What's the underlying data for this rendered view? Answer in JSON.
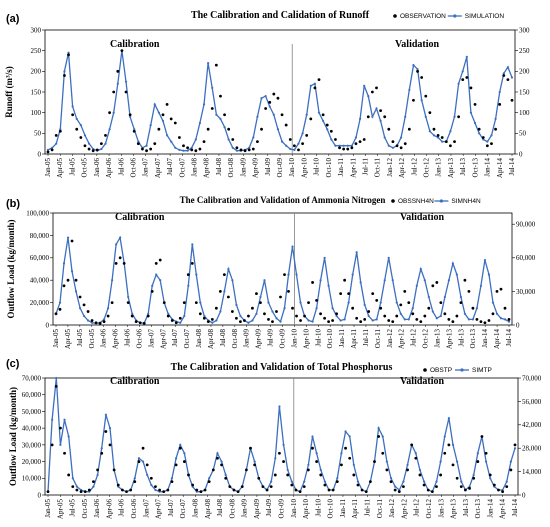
{
  "x_labels": [
    "Jan-05",
    "Apr-05",
    "Jul-05",
    "Oct-05",
    "Jan-06",
    "Apr-06",
    "Jul-06",
    "Oct-06",
    "Jan-07",
    "Apr-07",
    "Jul-07",
    "Oct-07",
    "Jan-08",
    "Apr-08",
    "Jul-08",
    "Oct-08",
    "Jan-09",
    "Apr-09",
    "Jul-09",
    "Oct-09",
    "Jan-10",
    "Apr-10",
    "Jul-10",
    "Oct-10",
    "Jan-11",
    "Apr-11",
    "Jul-11",
    "Oct-11",
    "Jan-12",
    "Apr-12",
    "Jul-12",
    "Oct-12",
    "Jan-13",
    "Apr-13",
    "Jul-13",
    "Oct-13",
    "Jan-14",
    "Apr-14",
    "Jul-14"
  ],
  "colors": {
    "simulation": "#3d6fc0",
    "observation": "#000000",
    "divider": "#7f7f7f"
  },
  "chart_data": [
    {
      "type": "line",
      "panel_label": "(a)",
      "title": "The Calibration and Calidation of  Runoff",
      "ylabel": "Runoff  (m³/s)",
      "ylim": [
        0,
        300
      ],
      "yticks": [
        0,
        50,
        100,
        150,
        200,
        250,
        300
      ],
      "y2ticks": [
        0,
        50,
        100,
        150,
        200,
        250,
        300
      ],
      "calibration_label": "Calibration",
      "validation_label": "Validation",
      "series": [
        {
          "name": "OBSERVATION",
          "kind": "points",
          "values": [
            5,
            10,
            45,
            55,
            190,
            240,
            95,
            60,
            40,
            20,
            12,
            8,
            10,
            25,
            45,
            100,
            150,
            200,
            250,
            150,
            95,
            55,
            25,
            12,
            8,
            12,
            25,
            60,
            95,
            120,
            85,
            75,
            40,
            20,
            15,
            10,
            8,
            12,
            30,
            60,
            110,
            215,
            140,
            95,
            60,
            35,
            15,
            10,
            8,
            10,
            12,
            30,
            60,
            110,
            125,
            145,
            135,
            95,
            70,
            35,
            20,
            10,
            25,
            45,
            85,
            160,
            180,
            95,
            70,
            55,
            35,
            15,
            12,
            12,
            15,
            25,
            30,
            35,
            90,
            150,
            160,
            105,
            90,
            60,
            30,
            20,
            15,
            25,
            60,
            130,
            200,
            185,
            140,
            100,
            60,
            45,
            40,
            30,
            20,
            30,
            90,
            180,
            185,
            160,
            120,
            60,
            40,
            20,
            25,
            60,
            120,
            190,
            180,
            130
          ]
        },
        {
          "name": "SIMULATION",
          "kind": "line",
          "values": [
            10,
            15,
            25,
            60,
            200,
            245,
            115,
            85,
            70,
            45,
            25,
            12,
            8,
            12,
            25,
            60,
            100,
            170,
            250,
            175,
            90,
            60,
            30,
            15,
            20,
            70,
            120,
            100,
            80,
            45,
            30,
            15,
            10,
            8,
            8,
            15,
            35,
            75,
            120,
            220,
            160,
            95,
            85,
            65,
            35,
            15,
            8,
            8,
            10,
            15,
            40,
            90,
            135,
            140,
            115,
            95,
            60,
            30,
            20,
            12,
            10,
            25,
            50,
            95,
            165,
            170,
            100,
            80,
            60,
            35,
            20,
            20,
            20,
            20,
            20,
            40,
            85,
            165,
            140,
            90,
            110,
            80,
            40,
            20,
            15,
            20,
            40,
            90,
            155,
            215,
            205,
            130,
            90,
            55,
            45,
            40,
            30,
            30,
            55,
            90,
            170,
            200,
            235,
            100,
            75,
            50,
            35,
            30,
            45,
            85,
            150,
            195,
            210,
            185
          ]
        }
      ]
    },
    {
      "type": "line",
      "panel_label": "(b)",
      "title": "The Calibration and Validation of Ammonia Nitrogen",
      "ylabel": "Outflow Load (kg/month)",
      "ylim": [
        0,
        100000
      ],
      "yticks": [
        "0",
        "20,000",
        "40,000",
        "60,000",
        "80,000",
        "100,000"
      ],
      "y2ticks": [
        "0",
        "30,000",
        "60,000",
        "90,000"
      ],
      "calibration_label": "Calibration",
      "validation_label": "Validation",
      "series": [
        {
          "name": "OBSSNH4N",
          "kind": "points",
          "values": [
            10000,
            14000,
            35000,
            40000,
            75000,
            40000,
            25000,
            18000,
            12000,
            4000,
            2000,
            1500,
            3000,
            8000,
            20000,
            55000,
            60000,
            55000,
            20000,
            8000,
            3000,
            2000,
            1500,
            8000,
            30000,
            55000,
            58000,
            20000,
            8000,
            4000,
            2000,
            6000,
            20000,
            45000,
            55000,
            20000,
            10000,
            6000,
            3000,
            5000,
            15000,
            30000,
            45000,
            25000,
            12000,
            6000,
            3000,
            4000,
            8000,
            15000,
            28000,
            20000,
            10000,
            5000,
            3000,
            12000,
            25000,
            45000,
            30000,
            15000,
            8000,
            4000,
            8000,
            20000,
            38000,
            22000,
            10000,
            6000,
            3000,
            4000,
            10000,
            28000,
            40000,
            28000,
            15000,
            6000,
            3000,
            5000,
            12000,
            28000,
            22000,
            15000,
            8000,
            4000,
            3000,
            8000,
            18000,
            30000,
            20000,
            10000,
            5000,
            3000,
            8000,
            15000,
            35000,
            38000,
            20000,
            10000,
            5000,
            3000,
            8000,
            20000,
            40000,
            30000,
            15000,
            5000,
            3000,
            2000,
            4000,
            10000,
            30000,
            32000,
            15000,
            5000
          ]
        },
        {
          "name": "SIMNH4N",
          "kind": "line",
          "values": [
            10000,
            20000,
            55000,
            78000,
            48000,
            30000,
            15000,
            8000,
            4000,
            2000,
            1500,
            2000,
            5000,
            15000,
            40000,
            72000,
            78000,
            55000,
            25000,
            10000,
            4000,
            2000,
            1500,
            10000,
            35000,
            45000,
            40000,
            20000,
            10000,
            5000,
            3000,
            2000,
            8000,
            35000,
            72000,
            45000,
            20000,
            8000,
            4000,
            2000,
            4000,
            12000,
            30000,
            50000,
            40000,
            18000,
            8000,
            4000,
            2000,
            4000,
            10000,
            25000,
            40000,
            20000,
            12000,
            6000,
            3000,
            15000,
            45000,
            70000,
            45000,
            20000,
            8000,
            4000,
            3000,
            15000,
            40000,
            60000,
            35000,
            15000,
            8000,
            4000,
            5000,
            20000,
            45000,
            65000,
            38000,
            18000,
            8000,
            4000,
            5000,
            20000,
            40000,
            60000,
            40000,
            20000,
            10000,
            5000,
            5000,
            15000,
            35000,
            50000,
            40000,
            25000,
            12000,
            6000,
            8000,
            25000,
            40000,
            55000,
            45000,
            25000,
            10000,
            5000,
            5000,
            15000,
            35000,
            58000,
            45000,
            20000,
            10000,
            6000,
            5000,
            3000
          ]
        }
      ]
    },
    {
      "type": "line",
      "panel_label": "(c)",
      "title": "The Calibration and Validation of  Total Phosphorus",
      "ylabel": "Outflow Load (kg/month)",
      "ylim": [
        0,
        70000
      ],
      "yticks": [
        "0",
        "10,000",
        "20,000",
        "30,000",
        "40,000",
        "50,000",
        "60,000",
        "70,000"
      ],
      "y2ticks": [
        "0",
        "14,000",
        "28,000",
        "42,000",
        "56,000",
        "70,000"
      ],
      "calibration_label": "Calibration",
      "validation_label": "Validation",
      "series": [
        {
          "name": "OBSTP",
          "kind": "points",
          "values": [
            2000,
            30000,
            65000,
            40000,
            25000,
            12000,
            5000,
            3000,
            2000,
            2000,
            3000,
            8000,
            15000,
            25000,
            38000,
            30000,
            15000,
            6000,
            3000,
            2000,
            3000,
            8000,
            20000,
            28000,
            18000,
            10000,
            5000,
            3000,
            2000,
            3000,
            8000,
            18000,
            28000,
            20000,
            12000,
            6000,
            3000,
            2000,
            3000,
            8000,
            15000,
            22000,
            18000,
            10000,
            5000,
            3000,
            2000,
            5000,
            15000,
            28000,
            18000,
            10000,
            5000,
            3000,
            5000,
            12000,
            25000,
            20000,
            12000,
            6000,
            3000,
            2000,
            5000,
            15000,
            28000,
            20000,
            12000,
            6000,
            3000,
            3000,
            8000,
            18000,
            28000,
            22000,
            12000,
            6000,
            3000,
            2000,
            8000,
            20000,
            35000,
            25000,
            15000,
            8000,
            3000,
            2000,
            5000,
            15000,
            30000,
            22000,
            12000,
            6000,
            3000,
            2000,
            5000,
            12000,
            25000,
            30000,
            18000,
            10000,
            5000,
            3000,
            4000,
            10000,
            20000,
            35000,
            25000,
            12000,
            6000,
            3000,
            2000,
            5000,
            15000,
            30000
          ]
        },
        {
          "name": "SIMTP",
          "kind": "line",
          "values": [
            2000,
            45000,
            70000,
            30000,
            45000,
            35000,
            10000,
            5000,
            3000,
            2000,
            2000,
            5000,
            12000,
            28000,
            48000,
            40000,
            15000,
            5000,
            3000,
            2000,
            3000,
            10000,
            22000,
            20000,
            12000,
            6000,
            3000,
            2000,
            2000,
            3000,
            10000,
            22000,
            30000,
            25000,
            12000,
            5000,
            2000,
            2000,
            3000,
            10000,
            15000,
            25000,
            20000,
            12000,
            5000,
            3000,
            2000,
            5000,
            15000,
            28000,
            20000,
            10000,
            5000,
            3000,
            8000,
            22000,
            53000,
            30000,
            15000,
            8000,
            3000,
            2000,
            8000,
            18000,
            35000,
            25000,
            15000,
            8000,
            3000,
            3000,
            10000,
            25000,
            38000,
            35000,
            18000,
            8000,
            3000,
            2000,
            8000,
            20000,
            40000,
            35000,
            20000,
            10000,
            5000,
            3000,
            8000,
            18000,
            30000,
            25000,
            15000,
            8000,
            3000,
            2000,
            8000,
            20000,
            35000,
            46000,
            30000,
            20000,
            8000,
            3000,
            5000,
            12000,
            25000,
            35000,
            20000,
            10000,
            5000,
            3000,
            3000,
            8000,
            20000,
            28000
          ]
        }
      ]
    }
  ]
}
